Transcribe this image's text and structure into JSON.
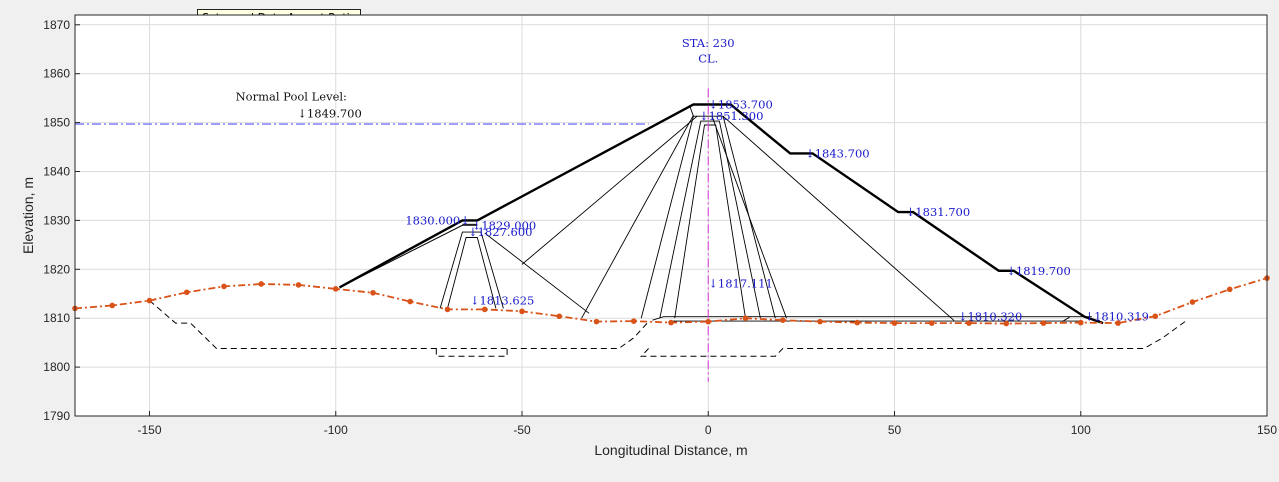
{
  "tooltip": "Set equal Data Aspect Ratio",
  "chart_data": {
    "type": "line",
    "xlabel": "Longitudinal Distance, m",
    "ylabel": "Elevation, m",
    "xlim": [
      -170,
      150
    ],
    "ylim": [
      1790,
      1872
    ],
    "xticks": [
      -150,
      -100,
      -50,
      0,
      50,
      100,
      150
    ],
    "yticks": [
      1790,
      1800,
      1810,
      1820,
      1830,
      1840,
      1850,
      1860,
      1870
    ],
    "grid": true,
    "colors": {
      "dam": "#000000",
      "ground": "#d95319",
      "pool": "#5a5aff",
      "centerline": "#dd44dd",
      "annotation": "#1a1acc",
      "foundation": "#000000"
    },
    "ground_profile": {
      "x": [
        -170,
        -160,
        -150,
        -140,
        -130,
        -120,
        -110,
        -100,
        -90,
        -80,
        -70,
        -60,
        -50,
        -40,
        -30,
        -20,
        -10,
        0,
        10,
        20,
        30,
        40,
        50,
        60,
        70,
        80,
        90,
        100,
        110,
        120,
        130,
        140,
        150
      ],
      "y": [
        1812,
        1812.6,
        1813.6,
        1815.3,
        1816.5,
        1817,
        1816.8,
        1816,
        1815.2,
        1813.4,
        1811.8,
        1811.8,
        1811.4,
        1810.4,
        1809.3,
        1809.4,
        1809.1,
        1809.3,
        1810,
        1809.6,
        1809.3,
        1809.1,
        1809,
        1809,
        1809,
        1808.9,
        1809,
        1809.1,
        1809,
        1810.4,
        1813.3,
        1815.9,
        1818.2
      ]
    },
    "dam_outline": {
      "x": [
        -99,
        -66,
        -62,
        -4,
        6,
        22,
        28,
        51,
        55,
        78,
        82,
        101,
        106
      ],
      "y": [
        1816.3,
        1830,
        1830,
        1853.7,
        1853.7,
        1843.7,
        1843.7,
        1831.7,
        1831.7,
        1819.7,
        1819.7,
        1810.3,
        1809
      ]
    },
    "pool": {
      "label": "Normal Pool Level:",
      "value": "↓1849.700",
      "elevation": 1849.7,
      "x_start": -170,
      "x_end": -16
    },
    "centerline": {
      "x": 0,
      "line1": "STA: 230",
      "line2": "CL."
    },
    "annotations": [
      {
        "text": "↓1853.700",
        "x": 0,
        "y": 1853.7
      },
      {
        "text": "↓1851.300",
        "x": -2.5,
        "y": 1851.3
      },
      {
        "text": "↓1843.700",
        "x": 26,
        "y": 1843.7
      },
      {
        "text": "↓1831.700",
        "x": 53,
        "y": 1831.7
      },
      {
        "text": "↓1819.700",
        "x": 80,
        "y": 1819.7
      },
      {
        "text": "1830.000↓",
        "x": -64,
        "y": 1830
      },
      {
        "text": "↓1829.000",
        "x": -63.5,
        "y": 1829
      },
      {
        "text": "↓1827.600",
        "x": -64.5,
        "y": 1827.6
      },
      {
        "text": "↓1810.320",
        "x": 67,
        "y": 1810.3
      },
      {
        "text": "↓1810.319",
        "x": 101,
        "y": 1810.3
      },
      {
        "text": "↓1813.625",
        "x": -64,
        "y": 1813.6
      },
      {
        "text": "↓1817.111",
        "x": 0,
        "y": 1817.1
      }
    ]
  }
}
